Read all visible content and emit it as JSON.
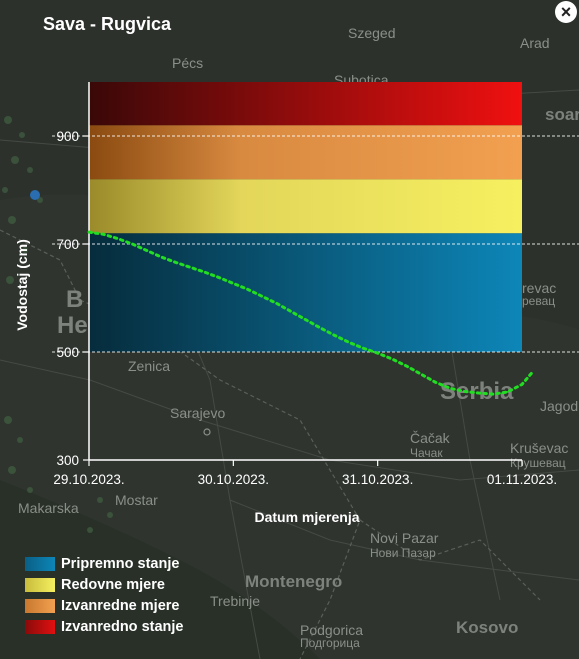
{
  "popup": {
    "title": "Sava - Rugvica",
    "close_label": "×"
  },
  "map": {
    "labels": [
      {
        "text": "Szeged",
        "size": "sm"
      },
      {
        "text": "Arad",
        "size": "sm"
      },
      {
        "text": "Pécs",
        "size": "sm"
      },
      {
        "text": "Subotica",
        "size": "sm"
      },
      {
        "text": "soara",
        "size": "md"
      },
      {
        "text": "B",
        "size": "lg"
      },
      {
        "text": "He",
        "size": "lg"
      },
      {
        "text": "Zenica",
        "size": "sm"
      },
      {
        "text": "Sarajevo",
        "size": "sm"
      },
      {
        "text": "Serbia",
        "size": "lg"
      },
      {
        "text": "Jagod",
        "size": "sm"
      },
      {
        "text": "Čačak",
        "size": "sm"
      },
      {
        "text": "Чачак",
        "size": "cyr"
      },
      {
        "text": "Kruševac",
        "size": "sm"
      },
      {
        "text": "Крушевац",
        "size": "cyr"
      },
      {
        "text": "Mostar",
        "size": "sm"
      },
      {
        "text": "Makarska",
        "size": "sm"
      },
      {
        "text": "Novi Pazar",
        "size": "sm"
      },
      {
        "text": "Нови Пазар",
        "size": "cyr"
      },
      {
        "text": "Montenegro",
        "size": "md"
      },
      {
        "text": "Podgorica",
        "size": "sm"
      },
      {
        "text": "Подгорица",
        "size": "cyr"
      },
      {
        "text": "Kosovo",
        "size": "md"
      },
      {
        "text": "Trebinje",
        "size": "sm"
      },
      {
        "text": "revac",
        "size": "sm"
      },
      {
        "text": "ревац",
        "size": "cyr"
      }
    ]
  },
  "chart_data": {
    "type": "line",
    "ylabel": "Vodostaj (cm)",
    "xlabel": "Datum mjerenja",
    "ylim": [
      300,
      1000
    ],
    "yticks": [
      300,
      500,
      700,
      900
    ],
    "xlim": [
      "2023-10-29",
      "2023-11-01"
    ],
    "xticks": [
      "29.10.2023.",
      "30.10.2023.",
      "31.10.2023.",
      "01.11.2023."
    ],
    "grid": "horizontal-dashed",
    "bands": [
      {
        "name": "Pripremno stanje",
        "from": 300,
        "to": 720,
        "color": "#0d86b8"
      },
      {
        "name": "Redovne mjere",
        "from": 720,
        "to": 820,
        "color": "#f4f060"
      },
      {
        "name": "Izvanredne mjere",
        "from": 820,
        "to": 920,
        "color": "#f2a050"
      },
      {
        "name": "Izvanredno stanje",
        "from": 920,
        "to": 1000,
        "color": "#e01010"
      }
    ],
    "series": [
      {
        "color": "#22dd22",
        "style": "dotted",
        "x": [
          0,
          0.1,
          0.2,
          0.3,
          0.4,
          0.5,
          0.6,
          0.7,
          0.8,
          0.9,
          1.0,
          1.1,
          1.2,
          1.3,
          1.4,
          1.5,
          1.6,
          1.7,
          1.8,
          1.9,
          2.0,
          2.1,
          2.2,
          2.3,
          2.4,
          2.5,
          2.6,
          2.7,
          2.8,
          2.9,
          3.0,
          3.07
        ],
        "y": [
          722,
          718,
          710,
          700,
          688,
          676,
          666,
          657,
          648,
          638,
          627,
          616,
          603,
          590,
          575,
          560,
          545,
          531,
          518,
          507,
          498,
          487,
          474,
          459,
          444,
          433,
          427,
          424,
          422,
          426,
          440,
          462
        ]
      }
    ]
  },
  "legend": {
    "items": [
      {
        "label": "Pripremno stanje",
        "color": "#0d86b8"
      },
      {
        "label": "Redovne mjere",
        "color": "#f4f060"
      },
      {
        "label": "Izvanredne mjere",
        "color": "#f2a050"
      },
      {
        "label": "Izvanredno stanje",
        "color": "#e01010"
      }
    ]
  }
}
